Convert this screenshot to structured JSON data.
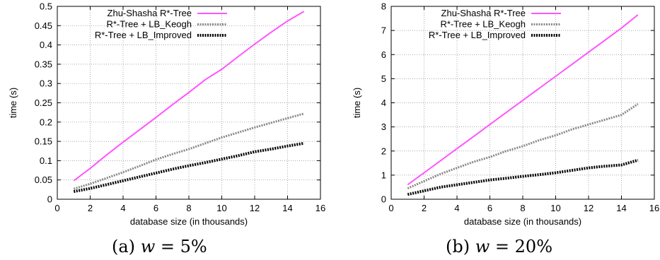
{
  "captions": [
    {
      "prefix": "(a)",
      "var": "w",
      "value": " = 5%"
    },
    {
      "prefix": "(b)",
      "var": "w",
      "value": " = 20%"
    }
  ],
  "chart_data": [
    {
      "type": "line",
      "title": "",
      "xlabel": "database size (in thousands)",
      "ylabel": "time (s)",
      "xlim": [
        0,
        16
      ],
      "ylim": [
        0,
        0.5
      ],
      "xticks": [
        0,
        2,
        4,
        6,
        8,
        10,
        12,
        14,
        16
      ],
      "xtick_labels": [
        "0",
        "2",
        "4",
        "6",
        "8",
        "10",
        "12",
        "14",
        "16"
      ],
      "yticks": [
        0,
        0.05,
        0.1,
        0.15,
        0.2,
        0.25,
        0.3,
        0.35,
        0.4,
        0.45,
        0.5
      ],
      "ytick_labels": [
        "0",
        "0.05",
        "0.1",
        "0.15",
        "0.2",
        "0.25",
        "0.3",
        "0.35",
        "0.4",
        "0.45",
        "0.5"
      ],
      "grid": true,
      "legend_position": "top-left",
      "series": [
        {
          "name": "Zhu-Shasha R*-Tree",
          "color": "#ff55ff",
          "style": "magenta-solid",
          "x": [
            1,
            2,
            3,
            4,
            5,
            6,
            7,
            8,
            9,
            10,
            11,
            12,
            13,
            14,
            15
          ],
          "y": [
            0.048,
            0.08,
            0.115,
            0.148,
            0.18,
            0.212,
            0.245,
            0.277,
            0.31,
            0.337,
            0.37,
            0.402,
            0.433,
            0.462,
            0.487
          ]
        },
        {
          "name": "R*-Tree + LB_Keogh",
          "color": "#888888",
          "style": "gray-dotted",
          "x": [
            1,
            2,
            3,
            4,
            5,
            6,
            7,
            8,
            9,
            10,
            11,
            12,
            13,
            14,
            15
          ],
          "y": [
            0.027,
            0.04,
            0.055,
            0.07,
            0.086,
            0.103,
            0.117,
            0.13,
            0.145,
            0.16,
            0.173,
            0.186,
            0.198,
            0.21,
            0.222
          ]
        },
        {
          "name": "R*-Tree + LB_Improved",
          "color": "#000000",
          "style": "black-dotted",
          "x": [
            1,
            2,
            3,
            4,
            5,
            6,
            7,
            8,
            9,
            10,
            11,
            12,
            13,
            14,
            15
          ],
          "y": [
            0.02,
            0.028,
            0.038,
            0.048,
            0.058,
            0.068,
            0.078,
            0.087,
            0.095,
            0.104,
            0.113,
            0.123,
            0.13,
            0.138,
            0.145
          ]
        }
      ]
    },
    {
      "type": "line",
      "title": "",
      "xlabel": "database size (in thousands)",
      "ylabel": "time (s)",
      "xlim": [
        0,
        16
      ],
      "ylim": [
        0,
        8
      ],
      "xticks": [
        0,
        2,
        4,
        6,
        8,
        10,
        12,
        14,
        16
      ],
      "xtick_labels": [
        "0",
        "2",
        "4",
        "6",
        "8",
        "10",
        "12",
        "14",
        "16"
      ],
      "yticks": [
        0,
        1,
        2,
        3,
        4,
        5,
        6,
        7,
        8
      ],
      "ytick_labels": [
        "0",
        "1",
        "2",
        "3",
        "4",
        "5",
        "6",
        "7",
        "8"
      ],
      "grid": true,
      "legend_position": "top-left",
      "series": [
        {
          "name": "Zhu-Shasha R*-Tree",
          "color": "#ff55ff",
          "style": "magenta-solid",
          "x": [
            1,
            2,
            3,
            4,
            5,
            6,
            7,
            8,
            9,
            10,
            11,
            12,
            13,
            14,
            15
          ],
          "y": [
            0.6,
            1.1,
            1.6,
            2.1,
            2.6,
            3.1,
            3.6,
            4.1,
            4.6,
            5.1,
            5.6,
            6.1,
            6.6,
            7.1,
            7.65
          ]
        },
        {
          "name": "R*-Tree + LB_Keogh",
          "color": "#888888",
          "style": "gray-dotted",
          "x": [
            1,
            2,
            3,
            4,
            5,
            6,
            7,
            8,
            9,
            10,
            11,
            12,
            13,
            14,
            15
          ],
          "y": [
            0.45,
            0.75,
            1.05,
            1.3,
            1.55,
            1.75,
            2.0,
            2.2,
            2.45,
            2.65,
            2.9,
            3.1,
            3.3,
            3.5,
            3.95
          ]
        },
        {
          "name": "R*-Tree + LB_Improved",
          "color": "#000000",
          "style": "black-dotted",
          "x": [
            1,
            2,
            3,
            4,
            5,
            6,
            7,
            8,
            9,
            10,
            11,
            12,
            13,
            14,
            15
          ],
          "y": [
            0.2,
            0.35,
            0.5,
            0.6,
            0.7,
            0.8,
            0.87,
            0.95,
            1.02,
            1.1,
            1.2,
            1.3,
            1.37,
            1.42,
            1.62
          ]
        }
      ]
    }
  ]
}
